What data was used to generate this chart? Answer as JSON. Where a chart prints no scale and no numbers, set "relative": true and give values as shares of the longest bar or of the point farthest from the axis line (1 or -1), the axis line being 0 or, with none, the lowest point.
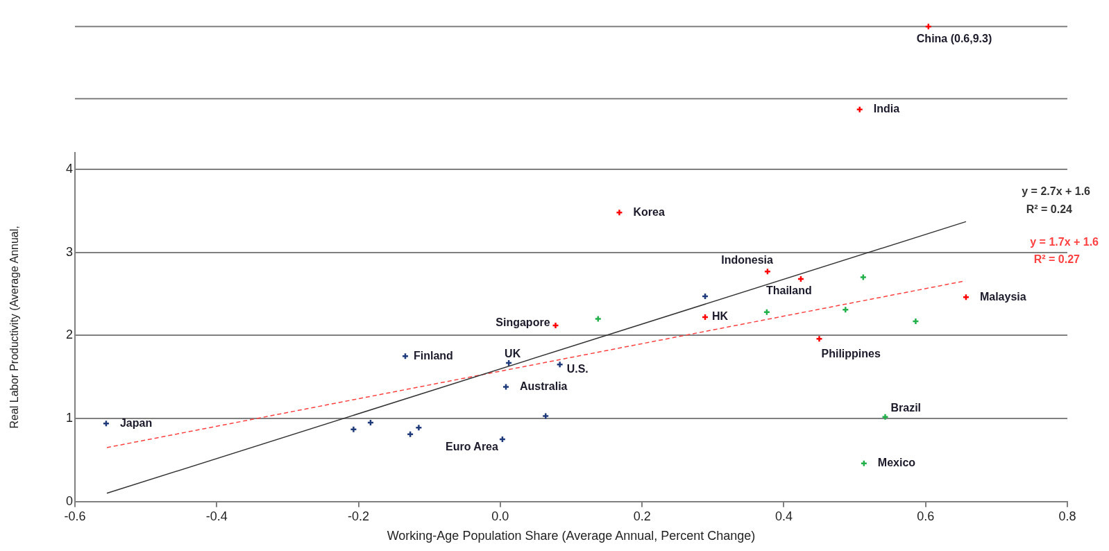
{
  "chart_data": [
    {
      "type": "scatter",
      "relative": true,
      "xlim": [
        -0.6,
        0.8
      ],
      "marker": "cross",
      "series": [
        {
          "color": "#ff0000",
          "x": [
            0.604,
            0.507
          ],
          "values": [
            1,
            0
          ]
        }
      ],
      "ref_lines": [
        {
          "axis": "y",
          "value": 1,
          "color": "#808080"
        },
        {
          "axis": "y",
          "value": 0.13,
          "color": "#808080"
        }
      ],
      "annotations": [
        {
          "text": "China (0.6,9.3)",
          "x": 0.604,
          "y": 1
        },
        {
          "text": "India",
          "x": 0.507,
          "y": 0
        }
      ]
    },
    {
      "type": "scatter",
      "xlabel": "Working-Age Population Share (Average Annual, Percent Change)",
      "ylabel": "Real Labor Productivity (Average Annual,",
      "xlim": [
        -0.6,
        0.8
      ],
      "ylim": [
        0,
        4.2
      ],
      "xticks": [
        -0.6,
        -0.4,
        -0.2,
        {
          "value": 0,
          "label": "0.0"
        },
        0.2,
        0.4,
        0.6,
        0.8
      ],
      "yticks": [
        0,
        1,
        2,
        3,
        4
      ],
      "grid": "y",
      "marker": "cross",
      "series": [
        {
          "color": "#1f3a7a",
          "x": [
            -0.556,
            -0.207,
            -0.183,
            -0.115,
            -0.127,
            -0.134,
            0.003,
            0.012,
            0.084,
            0.008,
            0.064,
            0.289
          ],
          "values": [
            0.94,
            0.87,
            0.95,
            0.89,
            0.81,
            1.75,
            0.75,
            1.67,
            1.65,
            1.38,
            1.03,
            2.47
          ]
        },
        {
          "color": "#ff0000",
          "x": [
            0.168,
            0.078,
            0.289,
            0.377,
            0.424,
            0.45,
            0.657
          ],
          "values": [
            3.48,
            2.12,
            2.22,
            2.77,
            2.68,
            1.96,
            2.46
          ]
        },
        {
          "color": "#22b04b",
          "x": [
            0.138,
            0.376,
            0.512,
            0.487,
            0.586,
            0.543,
            0.513
          ],
          "values": [
            2.2,
            2.28,
            2.7,
            2.31,
            2.17,
            1.02,
            0.46
          ]
        },
        {
          "type": "line",
          "color": "#333333",
          "x": [
            -0.555,
            0.657
          ],
          "values": [
            0.1,
            3.37
          ],
          "line_style": "solid",
          "marker": "none"
        },
        {
          "type": "line",
          "color": "#ff4040",
          "x": [
            -0.555,
            0.652
          ],
          "values": [
            0.65,
            2.65
          ],
          "line_style": "dashed",
          "marker": "none"
        }
      ],
      "annotations": [
        {
          "text": "Japan",
          "x": -0.556,
          "y": 0.94
        },
        {
          "text": "Finland",
          "x": -0.134,
          "y": 1.75
        },
        {
          "text": "Euro Area",
          "x": 0.003,
          "y": 0.75
        },
        {
          "text": "UK",
          "x": 0.012,
          "y": 1.67
        },
        {
          "text": "U.S.",
          "x": 0.084,
          "y": 1.65
        },
        {
          "text": "Australia",
          "x": 0.008,
          "y": 1.38
        },
        {
          "text": "Korea",
          "x": 0.168,
          "y": 3.48
        },
        {
          "text": "Singapore",
          "x": 0.078,
          "y": 2.12
        },
        {
          "text": "HK",
          "x": 0.289,
          "y": 2.22
        },
        {
          "text": "Indonesia",
          "x": 0.377,
          "y": 2.77
        },
        {
          "text": "Thailand",
          "x": 0.424,
          "y": 2.68
        },
        {
          "text": "Philippines",
          "x": 0.45,
          "y": 1.96
        },
        {
          "text": "Malaysia",
          "x": 0.657,
          "y": 2.46
        },
        {
          "text": "Brazil",
          "x": 0.543,
          "y": 1.02
        },
        {
          "text": "Mexico",
          "x": 0.513,
          "y": 0.46
        },
        "y = 2.7x + 1.6",
        "R² = 0.24",
        "y = 1.7x + 1.6",
        "R² = 0.27"
      ]
    }
  ]
}
